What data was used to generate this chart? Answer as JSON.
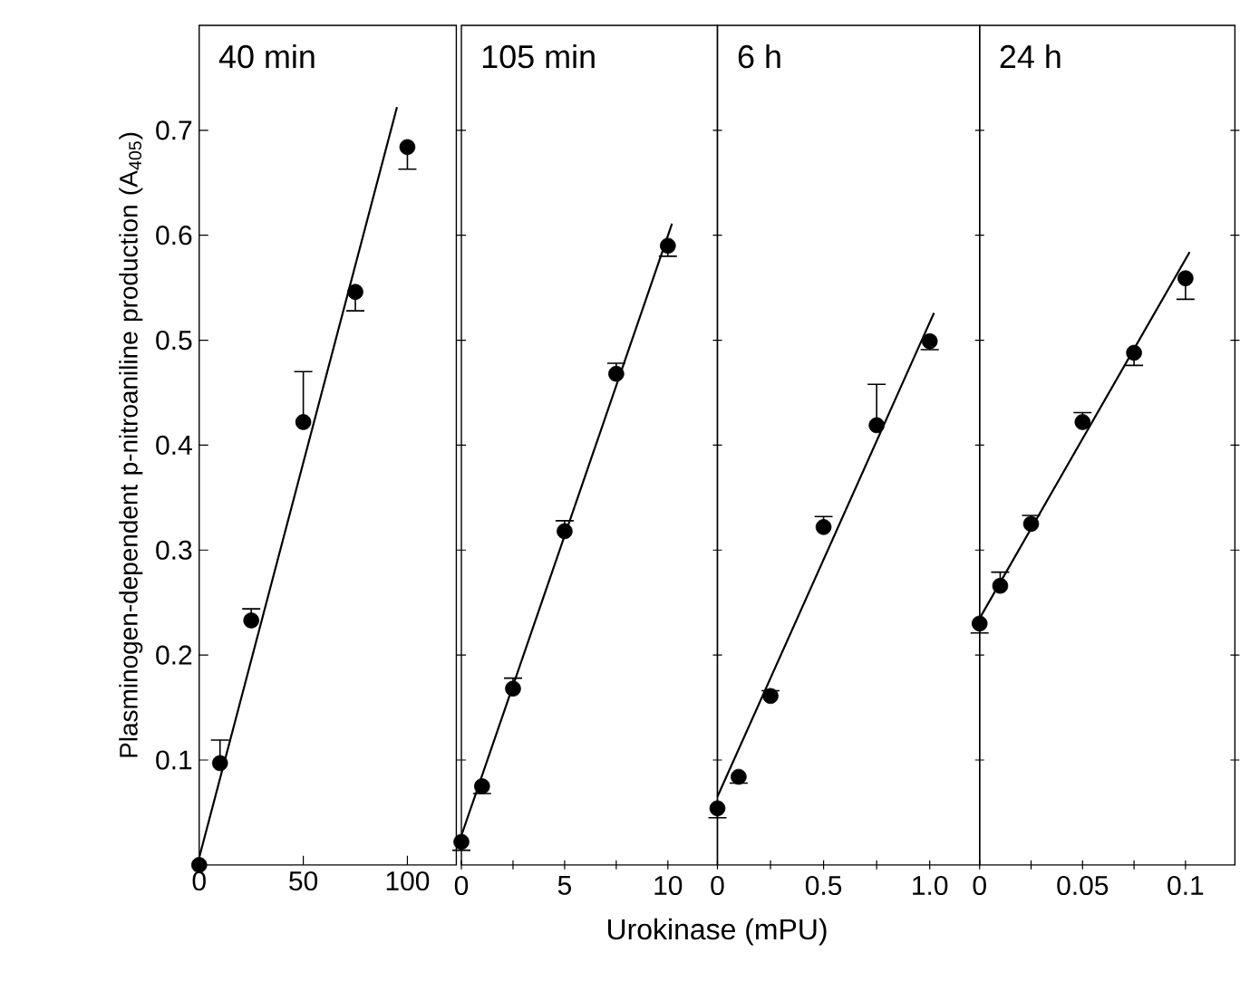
{
  "chart_data": [
    {
      "type": "scatter",
      "title": "40 min",
      "ylabel": "Plasminogen-dependent p-nitroaniline production (A$_{405}$)",
      "xlim": [
        0,
        123.5
      ],
      "ylim": [
        0,
        0.8
      ],
      "xticks": [
        0,
        50,
        100
      ],
      "yticks": [
        0.1,
        0.2,
        0.3,
        0.4,
        0.5,
        0.6,
        0.7
      ],
      "series": [
        {
          "marker": "circle",
          "color": "#000000",
          "x": [
            0,
            10,
            25,
            50,
            75,
            100
          ],
          "values": [
            0.0,
            0.097,
            0.233,
            0.422,
            0.546,
            0.684
          ],
          "errors": [
            null,
            [
              0.097,
              0.119
            ],
            [
              0.233,
              0.244
            ],
            [
              0.422,
              0.47
            ],
            [
              0.528,
              0.546
            ],
            [
              0.663,
              0.684
            ]
          ]
        },
        {
          "type": "line",
          "marker": "none",
          "color": "#000000",
          "x": [
            0,
            95
          ],
          "values": [
            0.007,
            0.722
          ]
        }
      ]
    },
    {
      "type": "scatter",
      "title": "105 min",
      "xlabel": "Urokinase (mPU)",
      "xlim": [
        0,
        12.4
      ],
      "ylim": [
        0,
        0.8
      ],
      "xticks": [
        0,
        {
          "value": 2.5,
          "label": null
        },
        5,
        {
          "value": 7.5,
          "label": null
        },
        10
      ],
      "yticks": [
        0.1,
        0.2,
        0.3,
        0.4,
        0.5,
        0.6,
        0.7
      ],
      "tick_labels": "x",
      "series": [
        {
          "marker": "circle",
          "color": "#000000",
          "x": [
            0,
            1,
            2.5,
            5,
            7.5,
            10
          ],
          "values": [
            0.022,
            0.075,
            0.168,
            0.318,
            0.468,
            0.59
          ],
          "errors": [
            [
              0.014,
              0.022
            ],
            [
              0.068,
              0.075
            ],
            [
              0.168,
              0.178
            ],
            [
              0.318,
              0.328
            ],
            [
              0.468,
              0.478
            ],
            [
              0.58,
              0.59
            ]
          ]
        },
        {
          "type": "line",
          "marker": "none",
          "color": "#000000",
          "x": [
            0,
            10.2
          ],
          "values": [
            0.028,
            0.611
          ]
        }
      ]
    },
    {
      "type": "scatter",
      "title": "6 h",
      "xlim": [
        0,
        1.235
      ],
      "ylim": [
        0,
        0.8
      ],
      "xticks": [
        0,
        {
          "value": 0.25,
          "label": null
        },
        0.5,
        {
          "value": 0.75,
          "label": null
        },
        {
          "value": 1,
          "label": "1.0"
        }
      ],
      "yticks": [
        0.1,
        0.2,
        0.3,
        0.4,
        0.5,
        0.6,
        0.7
      ],
      "tick_labels": "x",
      "series": [
        {
          "marker": "circle",
          "color": "#000000",
          "x": [
            0,
            0.1,
            0.25,
            0.5,
            0.75,
            1
          ],
          "values": [
            0.054,
            0.084,
            0.161,
            0.322,
            0.419,
            0.499
          ],
          "errors": [
            [
              0.045,
              0.054
            ],
            [
              0.078,
              0.084
            ],
            [
              0.161,
              0.166
            ],
            [
              0.322,
              0.332
            ],
            [
              0.419,
              0.458
            ],
            [
              0.491,
              0.499
            ]
          ]
        },
        {
          "type": "line",
          "marker": "none",
          "color": "#000000",
          "x": [
            0,
            1.02
          ],
          "values": [
            0.065,
            0.526
          ]
        }
      ]
    },
    {
      "type": "scatter",
      "title": "24 h",
      "xlim": [
        0,
        0.124
      ],
      "ylim": [
        0,
        0.8
      ],
      "xticks": [
        0,
        {
          "value": 0.025,
          "label": null
        },
        0.05,
        {
          "value": 0.075,
          "label": null
        },
        0.1
      ],
      "yticks": [
        0.1,
        0.2,
        0.3,
        0.4,
        0.5,
        0.6,
        0.7
      ],
      "tick_labels": "x",
      "series": [
        {
          "marker": "circle",
          "color": "#000000",
          "x": [
            0,
            0.01,
            0.025,
            0.05,
            0.075,
            0.1
          ],
          "values": [
            0.23,
            0.266,
            0.325,
            0.422,
            0.488,
            0.559
          ],
          "errors": [
            [
              0.221,
              0.23
            ],
            [
              0.266,
              0.279
            ],
            [
              0.325,
              0.333
            ],
            [
              0.422,
              0.431
            ],
            [
              0.476,
              0.488
            ],
            [
              0.539,
              0.559
            ]
          ]
        },
        {
          "type": "line",
          "marker": "none",
          "color": "#000000",
          "x": [
            0,
            0.102
          ],
          "values": [
            0.235,
            0.584
          ]
        }
      ]
    }
  ]
}
